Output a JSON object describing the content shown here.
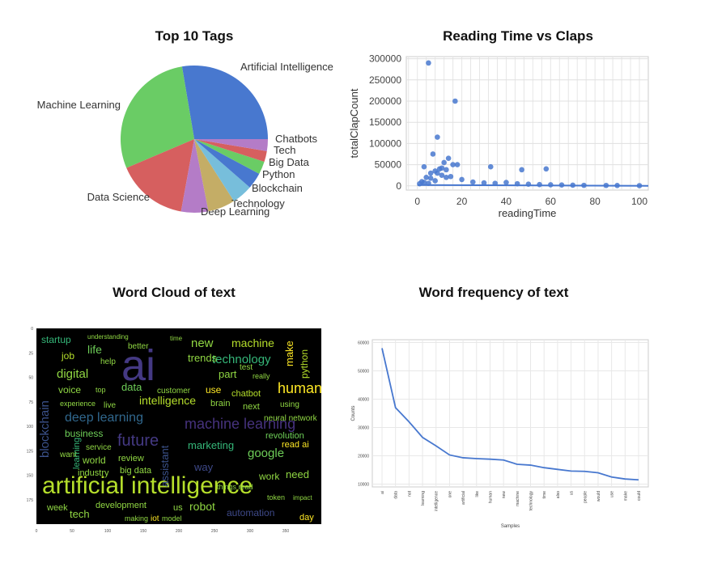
{
  "chart_data": [
    {
      "type": "pie",
      "title": "Top 10 Tags",
      "categories": [
        "Artificial Intelligence",
        "Machine Learning",
        "Data Science",
        "Deep Learning",
        "Technology",
        "Blockchain",
        "Python",
        "Big Data",
        "Tech",
        "Chatbots"
      ],
      "values": [
        25.5,
        26.5,
        14.5,
        5.5,
        5.5,
        4.2,
        3.3,
        2.6,
        2.2,
        2.4
      ],
      "colors": [
        "#4878cf",
        "#6acc65",
        "#d65f5f",
        "#b47cc7",
        "#c4ad66",
        "#77bedb",
        "#4878cf",
        "#6acc65",
        "#d65f5f",
        "#b47cc7"
      ]
    },
    {
      "type": "scatter",
      "title": "Reading Time vs Claps",
      "xlabel": "readingTime",
      "ylabel": "totalClapCount",
      "xlim": [
        -5,
        104
      ],
      "ylim": [
        -10000,
        305000
      ],
      "xticks": [
        0,
        20,
        40,
        60,
        80,
        100
      ],
      "yticks": [
        0,
        50000,
        100000,
        150000,
        200000,
        250000,
        300000
      ],
      "grid": true,
      "color": "#4878cf",
      "x": [
        5,
        17,
        9,
        7,
        14,
        12,
        16,
        18,
        3,
        10,
        11,
        13,
        6,
        8,
        33,
        47,
        58,
        11,
        13,
        9,
        15,
        20,
        4,
        6,
        8,
        2,
        3,
        5,
        1,
        25,
        30,
        35,
        40,
        45,
        50,
        55,
        60,
        65,
        70,
        75,
        85,
        90,
        100
      ],
      "y": [
        290000,
        200000,
        115000,
        75000,
        65000,
        55000,
        50000,
        50000,
        45000,
        40000,
        42000,
        38000,
        30000,
        35000,
        45000,
        38000,
        40000,
        25000,
        20000,
        30000,
        22000,
        15000,
        20000,
        18000,
        12000,
        10000,
        8000,
        6000,
        5000,
        9000,
        7000,
        6000,
        8000,
        5000,
        4000,
        3000,
        2500,
        2000,
        1500,
        1200,
        1000,
        800,
        500
      ],
      "trend": [
        [
          0,
          2000
        ],
        [
          104,
          0
        ]
      ]
    },
    {
      "type": "heatmap",
      "title": "Word Cloud of text",
      "xticks": [
        0,
        50,
        100,
        150,
        200,
        250,
        300,
        350
      ],
      "yticks": [
        0,
        25,
        50,
        75,
        100,
        125,
        150,
        175
      ],
      "words": [
        {
          "text": "artificial intelligence",
          "color": "#b5de2b",
          "size": 30
        },
        {
          "text": "ai",
          "color": "#443983",
          "size": 54
        },
        {
          "text": "machine learning",
          "color": "#46327e",
          "size": 18
        },
        {
          "text": "deep learning",
          "color": "#31688e",
          "size": 16
        },
        {
          "text": "future",
          "color": "#443983",
          "size": 20
        },
        {
          "text": "human",
          "color": "#fde725",
          "size": 18
        },
        {
          "text": "blockchain",
          "color": "#3b528b",
          "size": 15
        },
        {
          "text": "technology",
          "color": "#35b779",
          "size": 15
        },
        {
          "text": "intelligence",
          "color": "#b5de2b",
          "size": 14
        },
        {
          "text": "digital",
          "color": "#90d743",
          "size": 15
        },
        {
          "text": "robot",
          "color": "#90d743",
          "size": 14
        },
        {
          "text": "google",
          "color": "#6ece58",
          "size": 15
        },
        {
          "text": "marketing",
          "color": "#35b779",
          "size": 13
        },
        {
          "text": "assistant",
          "color": "#3b528b",
          "size": 13
        },
        {
          "text": "automation",
          "color": "#3e4989",
          "size": 12
        },
        {
          "text": "new",
          "color": "#90d743",
          "size": 15
        },
        {
          "text": "machine",
          "color": "#b5de2b",
          "size": 14
        },
        {
          "text": "trends",
          "color": "#90d743",
          "size": 13
        },
        {
          "text": "life",
          "color": "#6ece58",
          "size": 14
        },
        {
          "text": "make",
          "color": "#fde725",
          "size": 13
        },
        {
          "text": "python",
          "color": "#b5de2b",
          "size": 12
        },
        {
          "text": "data",
          "color": "#6ece58",
          "size": 13
        },
        {
          "text": "startup",
          "color": "#35b779",
          "size": 12
        },
        {
          "text": "job",
          "color": "#b5de2b",
          "size": 12
        },
        {
          "text": "voice",
          "color": "#90d743",
          "size": 12
        },
        {
          "text": "business",
          "color": "#6ece58",
          "size": 12
        },
        {
          "text": "world",
          "color": "#90d743",
          "size": 12
        },
        {
          "text": "industry",
          "color": "#90d743",
          "size": 11
        },
        {
          "text": "tech",
          "color": "#90d743",
          "size": 13
        },
        {
          "text": "development",
          "color": "#90d743",
          "size": 11
        },
        {
          "text": "week",
          "color": "#90d743",
          "size": 11
        },
        {
          "text": "need",
          "color": "#90d743",
          "size": 13
        },
        {
          "text": "read ai",
          "color": "#fde725",
          "size": 11
        },
        {
          "text": "revolution",
          "color": "#6ece58",
          "size": 11
        },
        {
          "text": "work",
          "color": "#90d743",
          "size": 12
        },
        {
          "text": "next",
          "color": "#90d743",
          "size": 11
        },
        {
          "text": "chatbot",
          "color": "#b5de2b",
          "size": 11
        },
        {
          "text": "part",
          "color": "#90d743",
          "size": 13
        },
        {
          "text": "use",
          "color": "#fde725",
          "size": 12
        },
        {
          "text": "brain",
          "color": "#90d743",
          "size": 11
        },
        {
          "text": "way",
          "color": "#3e4989",
          "size": 13
        },
        {
          "text": "review",
          "color": "#90d743",
          "size": 11
        },
        {
          "text": "big data",
          "color": "#90d743",
          "size": 11
        },
        {
          "text": "service",
          "color": "#90d743",
          "size": 10
        },
        {
          "text": "experience",
          "color": "#90d743",
          "size": 9
        },
        {
          "text": "live",
          "color": "#90d743",
          "size": 10
        },
        {
          "text": "want",
          "color": "#90d743",
          "size": 10
        },
        {
          "text": "help",
          "color": "#90d743",
          "size": 10
        },
        {
          "text": "better",
          "color": "#90d743",
          "size": 10
        },
        {
          "text": "customer",
          "color": "#90d743",
          "size": 10
        },
        {
          "text": "neural network",
          "color": "#90d743",
          "size": 10
        },
        {
          "text": "using",
          "color": "#90d743",
          "size": 10
        },
        {
          "text": "iot",
          "color": "#fde725",
          "size": 10
        },
        {
          "text": "day",
          "color": "#fde725",
          "size": 11
        },
        {
          "text": "things read",
          "color": "#90d743",
          "size": 9
        },
        {
          "text": "making",
          "color": "#90d743",
          "size": 9
        },
        {
          "text": "model",
          "color": "#90d743",
          "size": 9
        },
        {
          "text": "learning",
          "color": "#35b779",
          "size": 11
        },
        {
          "text": "test",
          "color": "#90d743",
          "size": 10
        },
        {
          "text": "really",
          "color": "#90d743",
          "size": 9
        },
        {
          "text": "top",
          "color": "#90d743",
          "size": 9
        },
        {
          "text": "understanding",
          "color": "#90d743",
          "size": 8
        },
        {
          "text": "time",
          "color": "#90d743",
          "size": 8
        },
        {
          "text": "token",
          "color": "#90d743",
          "size": 9
        },
        {
          "text": "us",
          "color": "#90d743",
          "size": 11
        },
        {
          "text": "impact",
          "color": "#90d743",
          "size": 8
        }
      ]
    },
    {
      "type": "line",
      "title": "Word frequency of text",
      "xlabel": "Samples",
      "ylabel": "Counts",
      "ylim": [
        9000,
        61000
      ],
      "yticks": [
        10000,
        20000,
        30000,
        40000,
        50000,
        60000
      ],
      "grid": true,
      "color": "#4878cf",
      "categories": [
        "ai",
        "data",
        "not",
        "learning",
        "intelligence",
        "one",
        "artificial",
        "like",
        "human",
        "new",
        "machine",
        "technology",
        "time",
        "also",
        "us",
        "people",
        "would",
        "use",
        "make",
        "could"
      ],
      "values": [
        58000,
        37000,
        32000,
        26500,
        23500,
        20300,
        19300,
        19000,
        18800,
        18500,
        17000,
        16700,
        15800,
        15200,
        14600,
        14500,
        14000,
        12500,
        11800,
        11500
      ]
    }
  ]
}
